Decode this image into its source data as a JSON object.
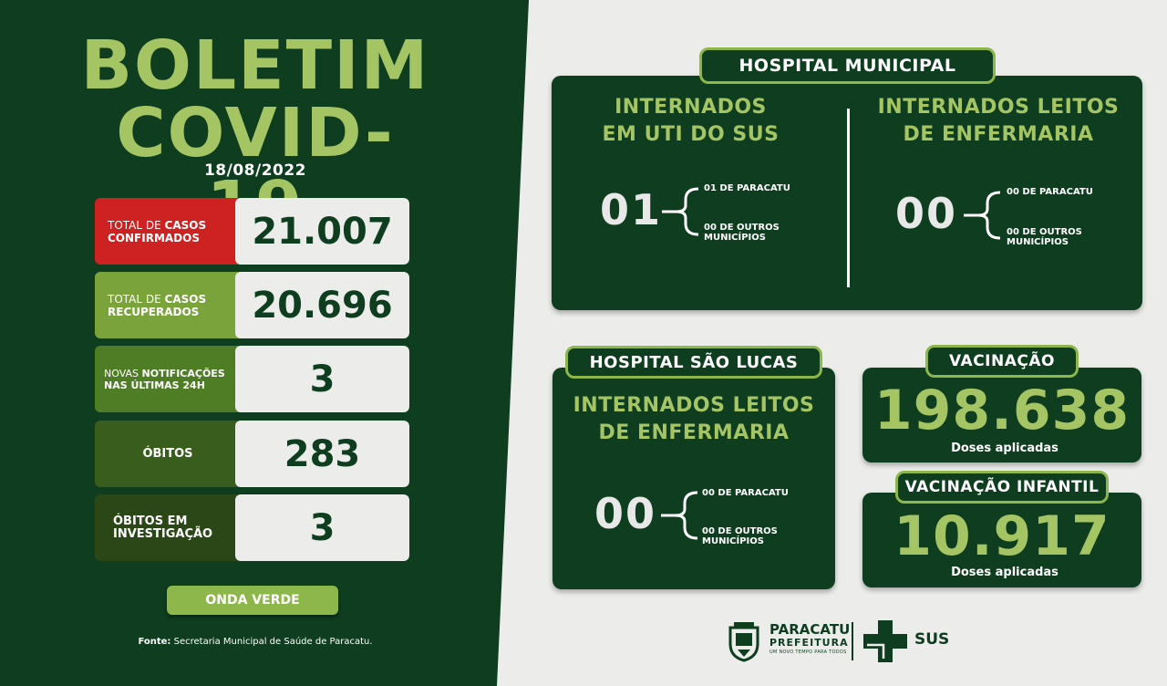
{
  "title": {
    "line1": "BOLETIM",
    "line2": "COVID-19"
  },
  "date": "18/08/2022",
  "stats": {
    "confirmados": {
      "label_normal": "TOTAL DE ",
      "label_bold": "CASOS",
      "label_line2": "CONFIRMADOS",
      "value": "21.007"
    },
    "recuperados": {
      "label_normal": "TOTAL DE ",
      "label_bold": "CASOS",
      "label_line2": "RECUPERADOS",
      "value": "20.696"
    },
    "notificacoes": {
      "label_normal": "NOVAS ",
      "label_bold": "NOTIFICAÇÕES",
      "label_line2": "NAS ÚLTIMAS 24H",
      "value": "3"
    },
    "obitos": {
      "label": "ÓBITOS",
      "value": "283"
    },
    "obitos_investigacao": {
      "label_line1": "ÓBITOS EM",
      "label_line2": "INVESTIGAÇÃO",
      "value": "3"
    }
  },
  "onda": "ONDA VERDE",
  "fonte": {
    "label": "Fonte:",
    "text": " Secretaria Municipal de Saúde de Paracatu."
  },
  "hospital_municipal": {
    "tab": "HOSPITAL MUNICIPAL",
    "uti": {
      "title_line1": "INTERNADOS",
      "title_line2": "EM UTI DO SUS",
      "total": "01",
      "paracatu": "01 DE PARACATU",
      "outros_line1": "00 DE OUTROS",
      "outros_line2": "MUNICÍPIOS"
    },
    "enfermaria": {
      "title_line1": "INTERNADOS LEITOS",
      "title_line2": "DE ENFERMARIA",
      "total": "00",
      "paracatu": "00 DE PARACATU",
      "outros_line1": "00 DE OUTROS",
      "outros_line2": "MUNICÍPIOS"
    }
  },
  "hospital_sao_lucas": {
    "tab": "HOSPITAL SÃO LUCAS",
    "title_line1": "INTERNADOS LEITOS",
    "title_line2": "DE ENFERMARIA",
    "total": "00",
    "paracatu": "00 DE PARACATU",
    "outros_line1": "00 DE OUTROS",
    "outros_line2": "MUNICÍPIOS"
  },
  "vacinacao": {
    "tab": "VACINAÇÃO",
    "value": "198.638",
    "label": "Doses aplicadas"
  },
  "vacinacao_infantil": {
    "tab": "VACINAÇÃO INFANTIL",
    "value": "10.917",
    "label": "Doses aplicadas"
  },
  "footer": {
    "paracatu": "PARACATU",
    "prefeitura": "PREFEITURA",
    "slogan": "UM NOVO TEMPO PARA TODOS",
    "sus": "SUS"
  },
  "colors": {
    "dark_green": "#0e3d1f",
    "light_green": "#a5c564",
    "red": "#cc2222",
    "background": "#ecedea"
  }
}
